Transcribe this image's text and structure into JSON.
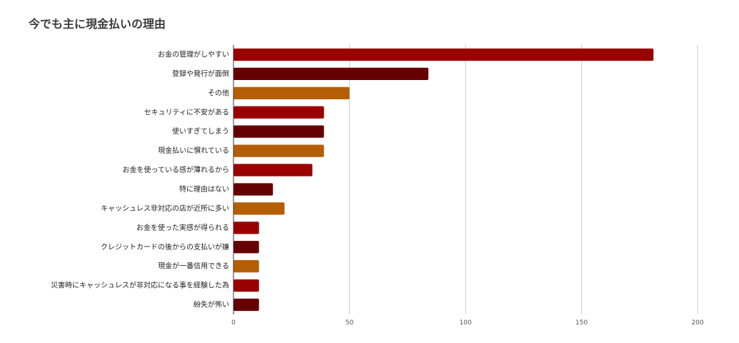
{
  "chart_data": {
    "type": "bar",
    "orientation": "horizontal",
    "title": "今でも主に現金払いの理由",
    "xlabel": "",
    "ylabel": "",
    "xlim": [
      0,
      200
    ],
    "xticks": [
      0,
      50,
      100,
      150,
      200
    ],
    "grid": true,
    "legend": "none",
    "categories": [
      "お金の管理がしやすい",
      "登録や発行が面倒",
      "その他",
      "セキュリティに不安がある",
      "使いすぎてしまう",
      "現金払いに慣れている",
      "お金を使っている感が薄れるから",
      "特に理由はない",
      "キャッシュレス非対応の店が近所に多い",
      "お金を使った実感が得られる",
      "クレジットカードの後からの支払いが嫌",
      "現金が一番信用できる",
      "災害時にキャッシュレスが非対応になる事を経験した為",
      "紛失が怖い"
    ],
    "values": [
      181,
      84,
      50,
      39,
      39,
      39,
      34,
      17,
      22,
      11,
      11,
      11,
      11,
      11
    ],
    "colors": [
      "#990000",
      "#660000",
      "#b45f06",
      "#990000",
      "#660000",
      "#b45f06",
      "#990000",
      "#660000",
      "#b45f06",
      "#990000",
      "#660000",
      "#b45f06",
      "#990000",
      "#660000"
    ]
  }
}
